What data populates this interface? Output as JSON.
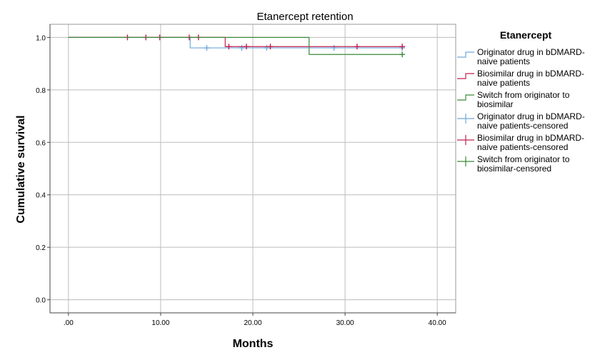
{
  "chart_data": {
    "type": "line",
    "title": "Etanercept retention",
    "xlabel": "Months",
    "ylabel": "Cumulative survival",
    "xlim": [
      -2,
      42
    ],
    "ylim": [
      -0.05,
      1.05
    ],
    "x_ticks": [
      0,
      10,
      20,
      30,
      40
    ],
    "x_tick_labels": [
      ".00",
      "10.00",
      "20.00",
      "30.00",
      "40.00"
    ],
    "y_ticks": [
      0,
      0.2,
      0.4,
      0.6,
      0.8,
      1.0
    ],
    "y_tick_labels": [
      "0.0",
      "0.2",
      "0.4",
      "0.6",
      "0.8",
      "1.0"
    ],
    "grid": true,
    "legend_title": "Etanercept",
    "legend_position": "right",
    "series": [
      {
        "name_lines": [
          "Originator drug in bDMARD-",
          "naive patients"
        ],
        "censored_name_lines": [
          "Originator drug in bDMARD-",
          "naive patients-censored"
        ],
        "color": "#6fa8dc",
        "steps": [
          [
            0,
            1.0
          ],
          [
            13.2,
            1.0
          ],
          [
            13.2,
            0.96
          ],
          [
            36.2,
            0.96
          ]
        ],
        "censored": [
          [
            15,
            0.96
          ],
          [
            18.8,
            0.96
          ],
          [
            21.5,
            0.96
          ],
          [
            28.8,
            0.96
          ],
          [
            36.2,
            0.96
          ]
        ]
      },
      {
        "name_lines": [
          "Biosimilar drug in bDMARD-",
          "naive patients"
        ],
        "censored_name_lines": [
          "Biosimilar drug in bDMARD-",
          "naive patients-censored"
        ],
        "color": "#c0204f",
        "steps": [
          [
            0,
            1.0
          ],
          [
            17,
            1.0
          ],
          [
            17,
            0.965
          ],
          [
            36.2,
            0.965
          ]
        ],
        "censored": [
          [
            6.4,
            1.0
          ],
          [
            8.4,
            1.0
          ],
          [
            9.9,
            1.0
          ],
          [
            13.1,
            1.0
          ],
          [
            14.1,
            1.0
          ],
          [
            17.4,
            0.965
          ],
          [
            19.3,
            0.965
          ],
          [
            21.9,
            0.965
          ],
          [
            31.3,
            0.965
          ],
          [
            36.2,
            0.965
          ]
        ]
      },
      {
        "name_lines": [
          "Switch from originator to",
          "biosimilar"
        ],
        "censored_name_lines": [
          "Switch from originator to",
          "biosimilar-censored"
        ],
        "color": "#3a8a3a",
        "steps": [
          [
            0,
            1.0
          ],
          [
            26.1,
            1.0
          ],
          [
            26.1,
            0.935
          ],
          [
            36.2,
            0.935
          ]
        ],
        "censored": [
          [
            36.2,
            0.935
          ]
        ]
      }
    ]
  }
}
